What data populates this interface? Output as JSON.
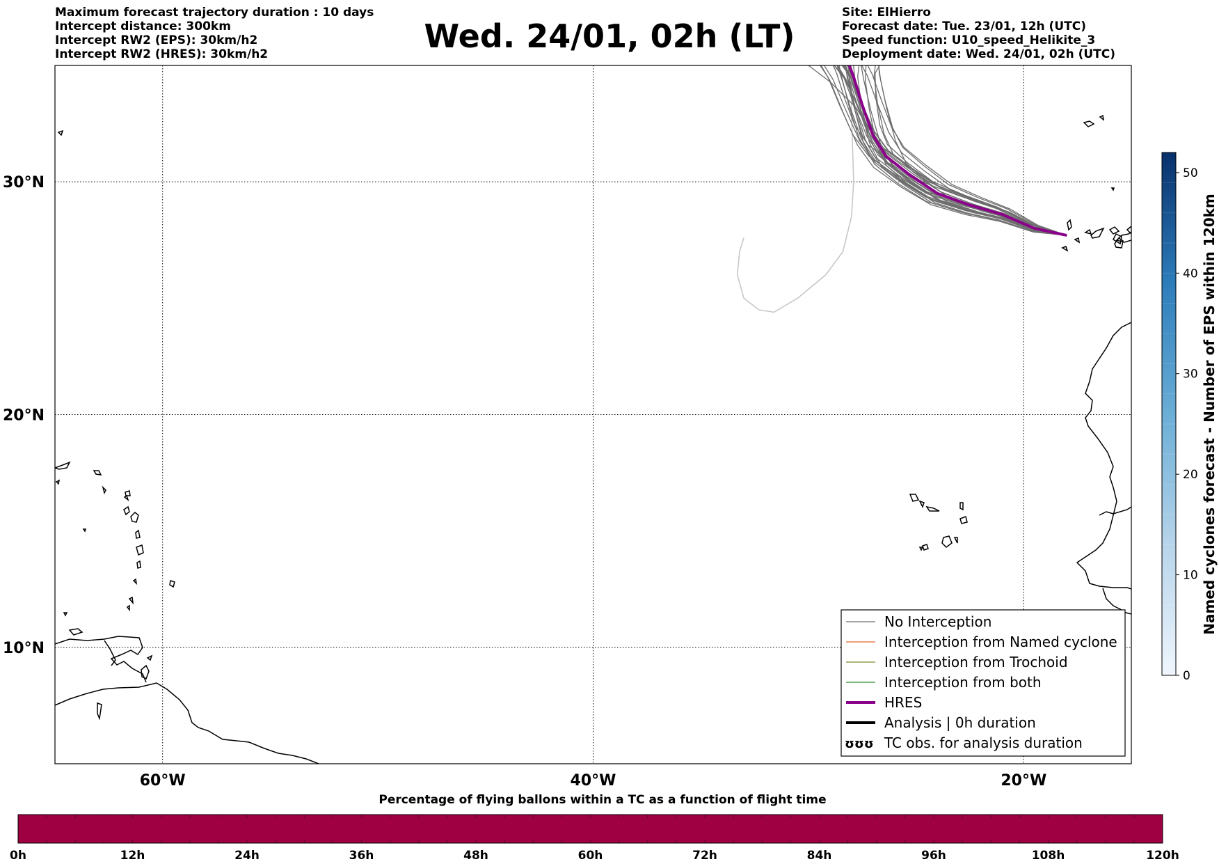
{
  "header": {
    "left_lines": [
      "Maximum forecast trajectory duration : 10 days",
      "Intercept distance: 300km",
      "Intercept RW2 (EPS):  30km/h2",
      "Intercept RW2 (HRES): 30km/h2"
    ],
    "title": "Wed. 24/01, 02h (LT)",
    "right_lines": [
      "Site: ElHierro",
      "Forecast date: Tue. 23/01, 12h (UTC)",
      "Speed function: U10_speed_Helikite_3",
      "Deployment date: Wed. 24/01, 02h (UTC)"
    ]
  },
  "map": {
    "lon_range": [
      -65,
      -15
    ],
    "lat_range": [
      5,
      35
    ],
    "lat_ticks": [
      {
        "value": 30,
        "label": "30°N"
      },
      {
        "value": 20,
        "label": "20°N"
      },
      {
        "value": 10,
        "label": "10°N"
      }
    ],
    "lon_ticks": [
      {
        "value": -60,
        "label": "60°W"
      },
      {
        "value": -40,
        "label": "40°W"
      },
      {
        "value": -20,
        "label": "20°W"
      }
    ],
    "grid": "dotted",
    "site": {
      "name": "ElHierro",
      "lon": -18.0,
      "lat": 27.7
    }
  },
  "trajectories": {
    "hres": [
      [
        -18.0,
        27.7
      ],
      [
        -19.5,
        28.0
      ],
      [
        -21.0,
        28.6
      ],
      [
        -22.5,
        29.0
      ],
      [
        -24.0,
        29.5
      ],
      [
        -25.3,
        30.3
      ],
      [
        -26.4,
        31.1
      ],
      [
        -27.0,
        32.0
      ],
      [
        -27.5,
        33.3
      ],
      [
        -27.9,
        34.5
      ],
      [
        -28.1,
        35.0
      ]
    ],
    "eps_sample_count": 30,
    "outlier": [
      [
        -28.0,
        35.0
      ],
      [
        -28.0,
        33.0
      ],
      [
        -27.9,
        30.0
      ],
      [
        -28.0,
        28.5
      ],
      [
        -28.4,
        27.0
      ],
      [
        -29.2,
        26.0
      ],
      [
        -30.5,
        25.0
      ],
      [
        -31.6,
        24.4
      ],
      [
        -32.3,
        24.5
      ],
      [
        -33.0,
        25.0
      ],
      [
        -33.3,
        26.0
      ],
      [
        -33.2,
        27.0
      ],
      [
        -33.0,
        27.6
      ]
    ],
    "colors": {
      "no_interception": "#6e6e6e",
      "hres": "#8b008b",
      "outlier": "#c8c8c8"
    }
  },
  "legend": {
    "position": "lower-right",
    "items": [
      {
        "label": "No Interception",
        "color": "#6e6e6e",
        "style": "thin"
      },
      {
        "label": "Interception from Named cyclone",
        "color": "#e8632b",
        "style": "thin"
      },
      {
        "label": "Interception from Trochoid",
        "color": "#7a8a2a",
        "style": "thin"
      },
      {
        "label": "Interception from both",
        "color": "#2a8a2a",
        "style": "thin"
      },
      {
        "label": "HRES",
        "color": "#8b008b",
        "style": "thick"
      },
      {
        "label": "Analysis | 0h duration",
        "color": "#000000",
        "style": "thick"
      },
      {
        "label": "TC obs. for analysis duration",
        "color": "#000000",
        "style": "symbol"
      }
    ]
  },
  "colorbar_right": {
    "label": "Named cyclones forecast - Number of EPS within 120km",
    "ticks": [
      "0",
      "10",
      "20",
      "30",
      "40",
      "50"
    ],
    "range": [
      0,
      52
    ],
    "colormap": "Blues"
  },
  "colorbar_bottom": {
    "title": "Percentage of flying ballons within a TC as a function of flight time",
    "ticks": [
      "0h",
      "12h",
      "24h",
      "36h",
      "48h",
      "60h",
      "72h",
      "84h",
      "96h",
      "108h",
      "120h"
    ],
    "color": "#9e0042"
  }
}
